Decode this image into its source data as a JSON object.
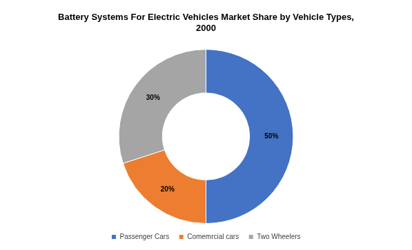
{
  "chart_data": {
    "type": "doughnut",
    "title": [
      "Battery Systems For Electric Vehicles Market Share by Vehicle Types,",
      "2000"
    ],
    "categories": [
      "Passenger Cars",
      "Comemrcial cars",
      "Two Wheelers"
    ],
    "values": [
      50,
      20,
      30
    ],
    "value_labels": [
      "50%",
      "20%",
      "30%"
    ],
    "colors": [
      "#4472c4",
      "#ed7d31",
      "#a5a5a5"
    ],
    "legend": "bottom",
    "data_labels": true
  }
}
